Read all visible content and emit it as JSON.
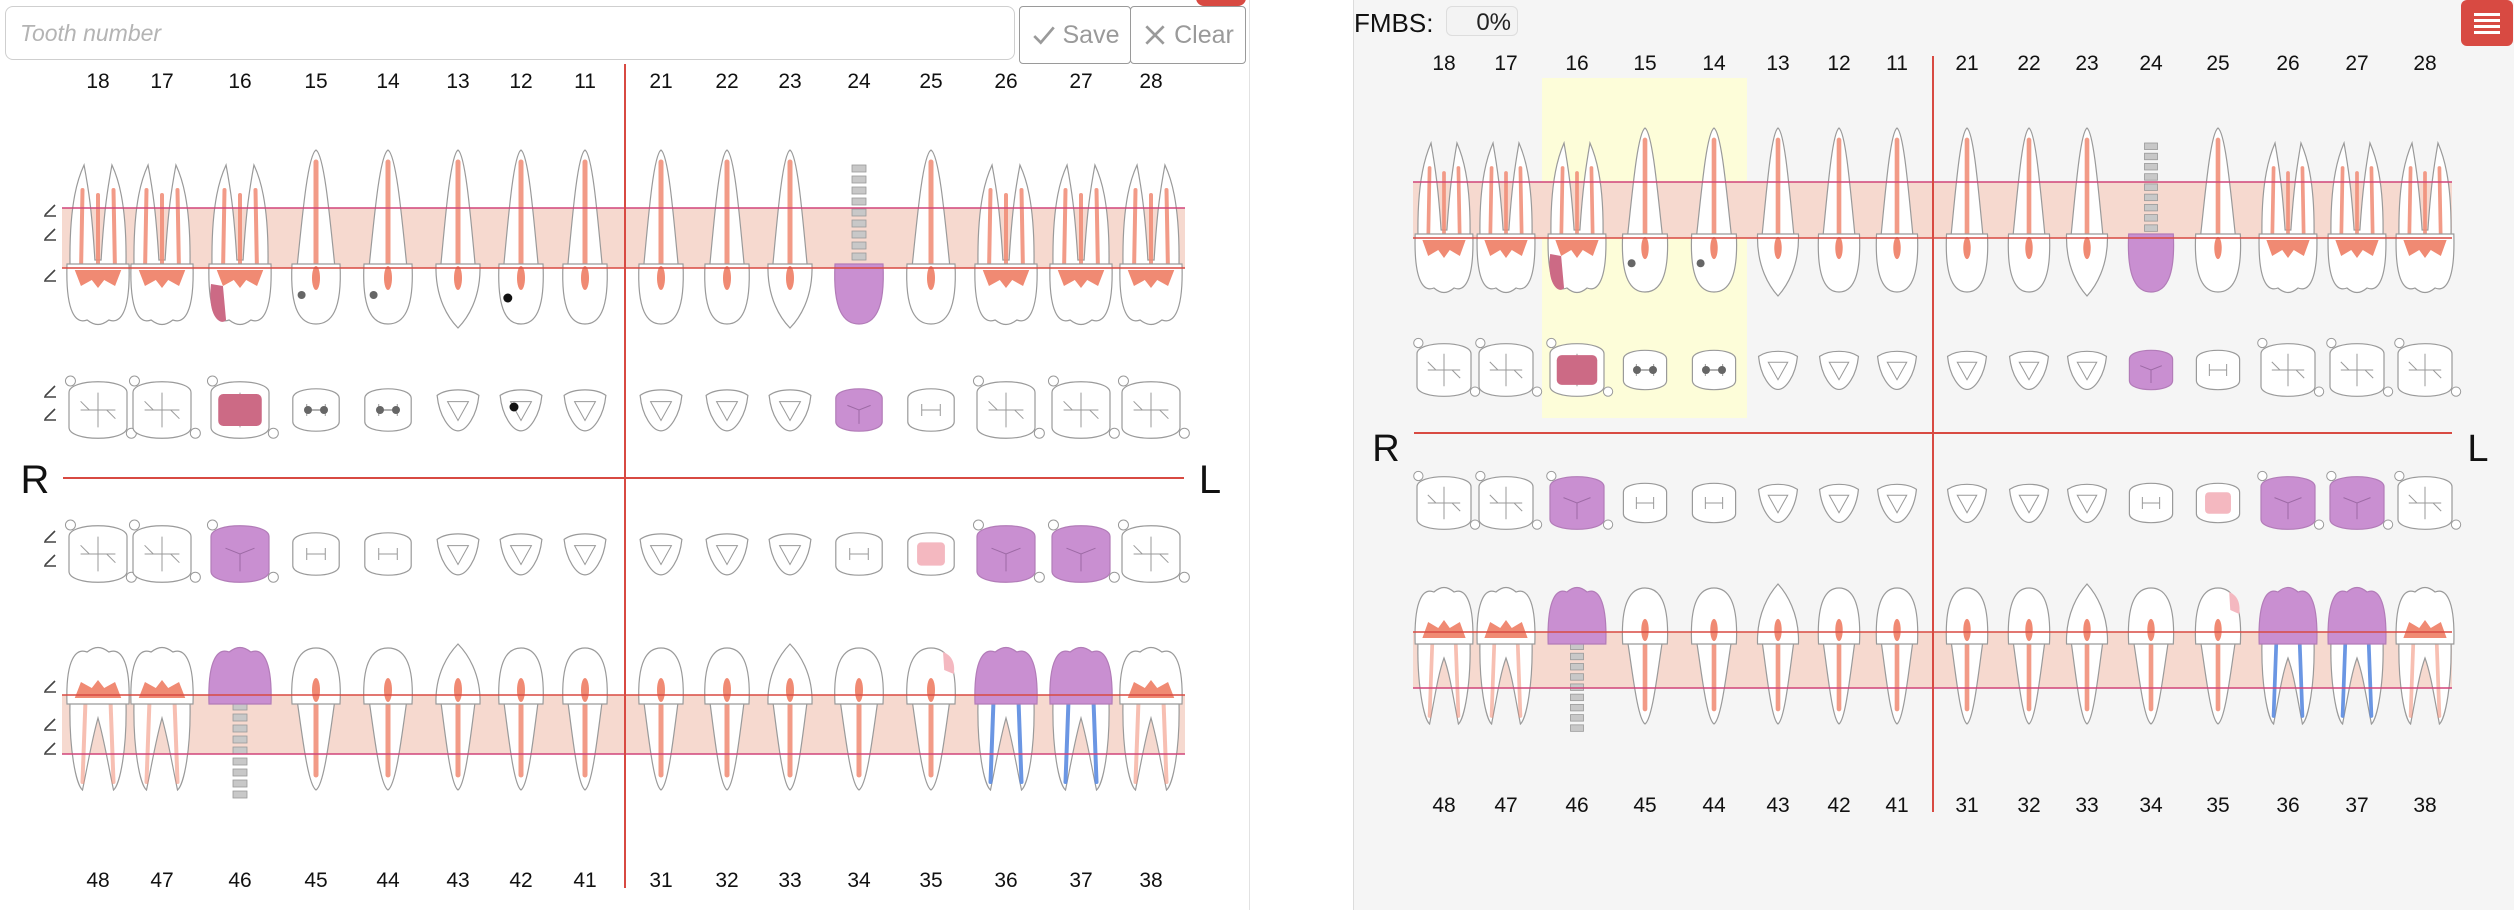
{
  "search": {
    "placeholder": "Tooth number",
    "value": ""
  },
  "buttons": {
    "save": "Save",
    "clear": "Clear"
  },
  "fmbs": {
    "label": "FMBS:",
    "value": "0%"
  },
  "sides": {
    "right": "R",
    "left": "L"
  },
  "upper_teeth": [
    "18",
    "17",
    "16",
    "15",
    "14",
    "13",
    "12",
    "11",
    "21",
    "22",
    "23",
    "24",
    "25",
    "26",
    "27",
    "28"
  ],
  "lower_teeth": [
    "48",
    "47",
    "46",
    "45",
    "44",
    "43",
    "42",
    "41",
    "31",
    "32",
    "33",
    "34",
    "35",
    "36",
    "37",
    "38"
  ],
  "colors": {
    "accent": "#d84a42",
    "gum": "#f6d9cf",
    "pulp": "#f08a73",
    "crown_purple": "#c98fd1",
    "filling": "#cc6a85",
    "implant": "#c8c8c8",
    "highlight": "#fdfdd9",
    "root_canal": "#5b8be0"
  },
  "icons": {
    "save": "check-icon",
    "clear": "close-icon",
    "menu": "hamburger-menu-icon",
    "edit": "pencil-icon"
  }
}
